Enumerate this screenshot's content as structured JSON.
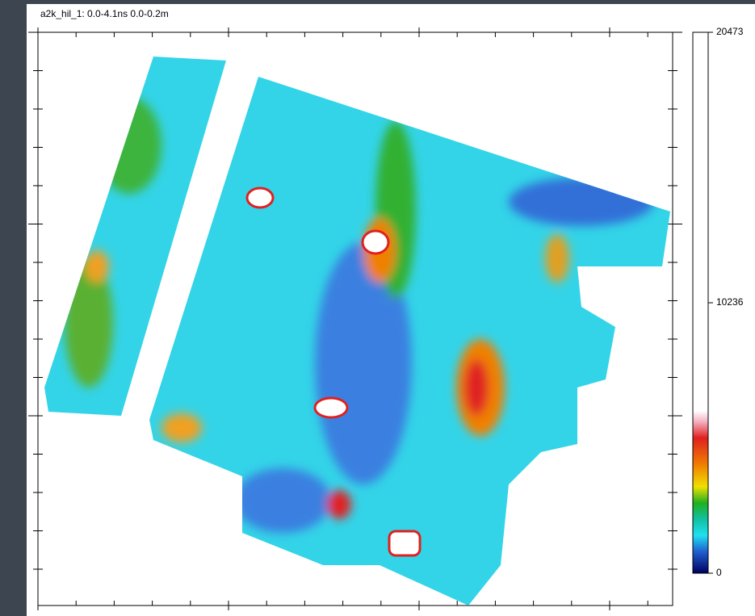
{
  "header": {
    "title": "a2k_hil_1:  0.0-4.1ns  0.0-0.2m"
  },
  "colorbar": {
    "ylim": [
      0,
      20473
    ],
    "yticks": [
      0,
      10236,
      20473
    ]
  }
}
